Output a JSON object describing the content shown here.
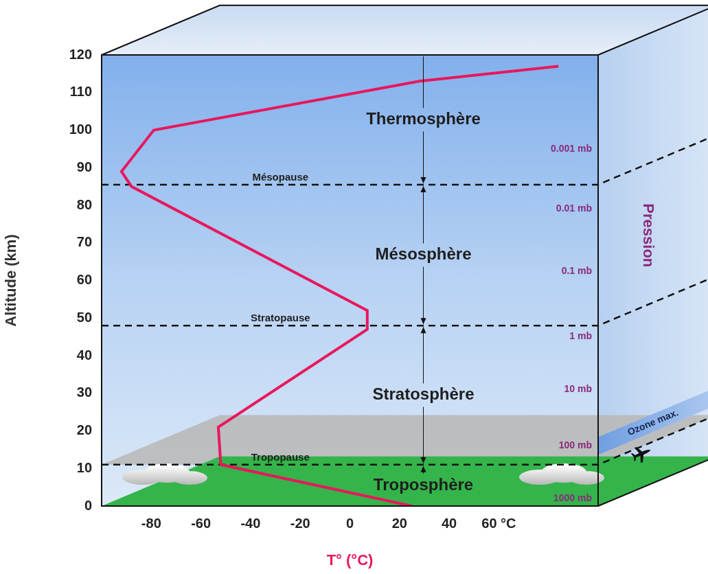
{
  "chart_data": {
    "type": "line",
    "x_label": "T° (°C)",
    "y_label": "Altitude (km)",
    "xlim": [
      -100,
      100
    ],
    "xticks": [
      -80,
      -60,
      -40,
      -20,
      0,
      20,
      40,
      {
        "value": 60,
        "label": "60 °C"
      }
    ],
    "ylim": [
      0,
      120
    ],
    "yticks": [
      0,
      10,
      20,
      30,
      40,
      50,
      60,
      70,
      80,
      90,
      100,
      110,
      120
    ],
    "grid": false,
    "color": "#e8175d",
    "x": [
      25,
      -52,
      -53,
      7,
      7,
      -88,
      -92,
      -79,
      28,
      84
    ],
    "values": [
      0,
      11,
      21,
      47,
      52,
      85,
      89,
      100,
      113,
      117
    ],
    "layers": [
      "Troposphère",
      "Stratosphère",
      "Mésosphère",
      "Thermosphère"
    ],
    "boundaries": [
      {
        "label": "Tropopause",
        "altitude": 11
      },
      {
        "label": "Stratopause",
        "altitude": 48
      },
      {
        "label": "Mésopause",
        "altitude": 85.5
      }
    ],
    "pressure_scale": {
      "title": "Pression",
      "levels": [
        {
          "label": "0.001 mb",
          "altitude": 95
        },
        {
          "label": "0.01 mb",
          "altitude": 79
        },
        {
          "label": "0.1 mb",
          "altitude": 62.5
        },
        {
          "label": "1 mb",
          "altitude": 45
        },
        {
          "label": "10 mb",
          "altitude": 31
        },
        {
          "label": "100 mb",
          "altitude": 16
        },
        {
          "label": "1000 mb",
          "altitude": 2
        }
      ]
    },
    "ozone": {
      "label": "Ozone max.",
      "altitude": 16
    }
  }
}
